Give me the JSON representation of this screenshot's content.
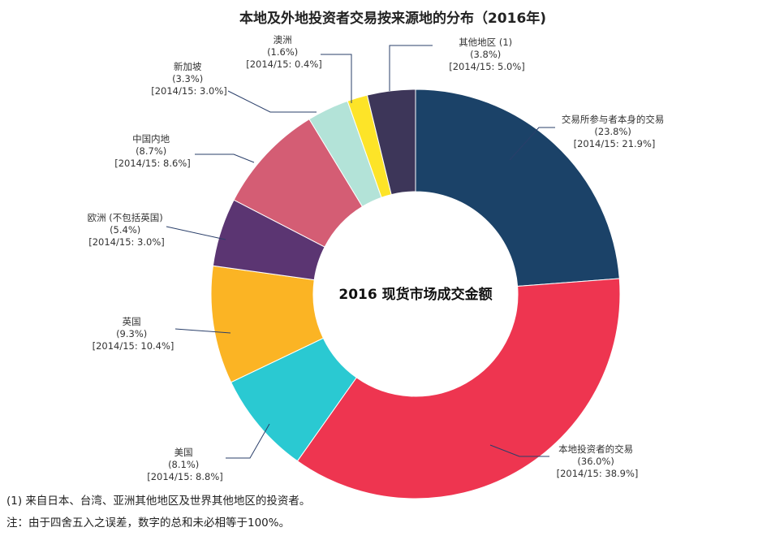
{
  "chart_data": {
    "type": "pie",
    "variant": "donut",
    "title": "本地及外地投资者交易按来源地的分布（2016年)",
    "center_label": "2016 现货市场成交金额",
    "slices": [
      {
        "name": "交易所参与者本身的交易",
        "value": 23.8,
        "value_label": "(23.8%)",
        "prior_label": "[2014/15: 21.9%]",
        "color": "#1b4268"
      },
      {
        "name": "本地投资者的交易",
        "value": 36.0,
        "value_label": "(36.0%)",
        "prior_label": "[2014/15: 38.9%]",
        "color": "#ee3550"
      },
      {
        "name": "美国",
        "value": 8.1,
        "value_label": "(8.1%)",
        "prior_label": "[2014/15: 8.8%]",
        "color": "#2ac9d2"
      },
      {
        "name": "英国",
        "value": 9.3,
        "value_label": "(9.3%)",
        "prior_label": "[2014/15: 10.4%]",
        "color": "#fbb424"
      },
      {
        "name": "欧洲 (不包括英国)",
        "value": 5.4,
        "value_label": "(5.4%)",
        "prior_label": "[2014/15: 3.0%]",
        "color": "#5b3572"
      },
      {
        "name": "中国内地",
        "value": 8.7,
        "value_label": "(8.7%)",
        "prior_label": "[2014/15: 8.6%]",
        "color": "#d45d74"
      },
      {
        "name": "新加坡",
        "value": 3.3,
        "value_label": "(3.3%)",
        "prior_label": "[2014/15: 3.0%]",
        "color": "#b3e3d8"
      },
      {
        "name": "澳洲",
        "value": 1.6,
        "value_label": "(1.6%)",
        "prior_label": "[2014/15: 0.4%]",
        "color": "#fde428"
      },
      {
        "name": "其他地区 (1)",
        "value": 3.8,
        "value_label": "(3.8%)",
        "prior_label": "[2014/15: 5.0%]",
        "color": "#3d3659"
      }
    ]
  },
  "footnotes": [
    "(1) 来自日本、台湾、亚洲其他地区及世界其他地区的投资者。",
    "注：由于四舍五入之误差，数字的总和未必相等于100%。"
  ]
}
